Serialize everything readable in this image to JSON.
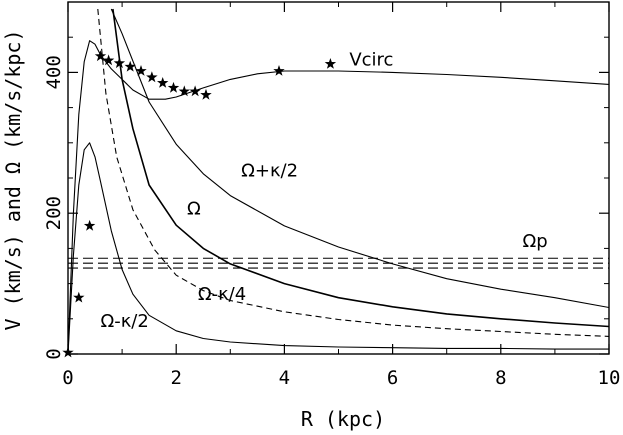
{
  "chart_data": {
    "type": "line",
    "xlabel": "R (kpc)",
    "ylabel": "V (km/s) and Ω (km/s/kpc)",
    "xlim": [
      0,
      10
    ],
    "ylim": [
      0,
      500
    ],
    "x_ticks": [
      0,
      2,
      4,
      6,
      8,
      10
    ],
    "x_tick_labels": [
      "0",
      "2",
      "4",
      "6",
      "8",
      "10"
    ],
    "y_ticks": [
      0,
      200,
      400
    ],
    "y_tick_labels": [
      "0",
      "200",
      "400"
    ],
    "grid": false,
    "series": [
      {
        "name": "Vcirc",
        "style": "solid",
        "x": [
          0,
          0.1,
          0.2,
          0.3,
          0.4,
          0.5,
          0.6,
          0.8,
          1.0,
          1.2,
          1.5,
          1.8,
          2.0,
          2.5,
          3.0,
          3.5,
          4.0,
          5.0,
          6.0,
          7.0,
          8.0,
          9.0,
          10.0
        ],
        "values": [
          0,
          200,
          340,
          415,
          445,
          440,
          425,
          405,
          390,
          375,
          362,
          362,
          365,
          378,
          390,
          398,
          402,
          402,
          400,
          397,
          393,
          388,
          383
        ]
      },
      {
        "name": "Ω+κ/2",
        "style": "solid",
        "x": [
          0.8,
          1.0,
          1.5,
          2.0,
          2.5,
          3.0,
          4.0,
          5.0,
          6.0,
          7.0,
          8.0,
          9.0,
          10.0
        ],
        "values": [
          490,
          455,
          358,
          298,
          256,
          225,
          182,
          152,
          128,
          107,
          92,
          80,
          66
        ]
      },
      {
        "name": "Ω",
        "style": "solid",
        "x": [
          0.83,
          1.0,
          1.2,
          1.5,
          2.0,
          2.5,
          3.0,
          4.0,
          5.0,
          6.0,
          7.0,
          8.0,
          9.0,
          10.0
        ],
        "values": [
          490,
          390,
          320,
          240,
          183,
          150,
          128,
          100,
          80,
          67,
          57,
          50,
          44,
          39
        ]
      },
      {
        "name": "Ω-κ/4",
        "style": "dashed",
        "x": [
          0.55,
          0.7,
          0.9,
          1.2,
          1.6,
          2.0,
          2.5,
          3.0,
          4.0,
          5.0,
          6.0,
          7.0,
          8.0,
          9.0,
          10.0
        ],
        "values": [
          490,
          370,
          280,
          205,
          148,
          112,
          90,
          76,
          60,
          49,
          41,
          36,
          32,
          28,
          25
        ]
      },
      {
        "name": "Ω-κ/2",
        "style": "solid",
        "x": [
          0,
          0.1,
          0.2,
          0.3,
          0.4,
          0.5,
          0.6,
          0.8,
          1.0,
          1.2,
          1.5,
          2.0,
          2.5,
          3.0,
          4.0,
          5.0,
          6.0,
          7.0,
          8.0,
          9.0,
          10.0
        ],
        "values": [
          0,
          140,
          240,
          290,
          300,
          280,
          245,
          175,
          120,
          85,
          55,
          33,
          22,
          17,
          12,
          10,
          9,
          8,
          8,
          7,
          7
        ]
      }
    ],
    "observed_points": {
      "marker": "star",
      "x": [
        0.0,
        0.2,
        0.4,
        0.6,
        0.75,
        0.95,
        1.15,
        1.35,
        1.55,
        1.75,
        1.95,
        2.15,
        2.35,
        2.55,
        3.9,
        4.85
      ],
      "values": [
        2,
        80,
        182,
        423,
        417,
        413,
        408,
        402,
        393,
        385,
        378,
        373,
        373,
        368,
        402,
        412
      ]
    },
    "pattern_speed": {
      "name": "Ωp",
      "style": "dashed",
      "values": [
        122,
        129,
        136
      ]
    },
    "annotations": [
      {
        "text": "Vcirc",
        "x": 5.2,
        "y": 410
      },
      {
        "text": "Ω+κ/2",
        "x": 3.2,
        "y": 252
      },
      {
        "text": "Ω",
        "x": 2.2,
        "y": 198
      },
      {
        "text": "Ωp",
        "x": 8.4,
        "y": 152
      },
      {
        "text": "Ω-κ/4",
        "x": 2.4,
        "y": 77
      },
      {
        "text": "Ω-κ/2",
        "x": 0.6,
        "y": 38
      }
    ]
  }
}
